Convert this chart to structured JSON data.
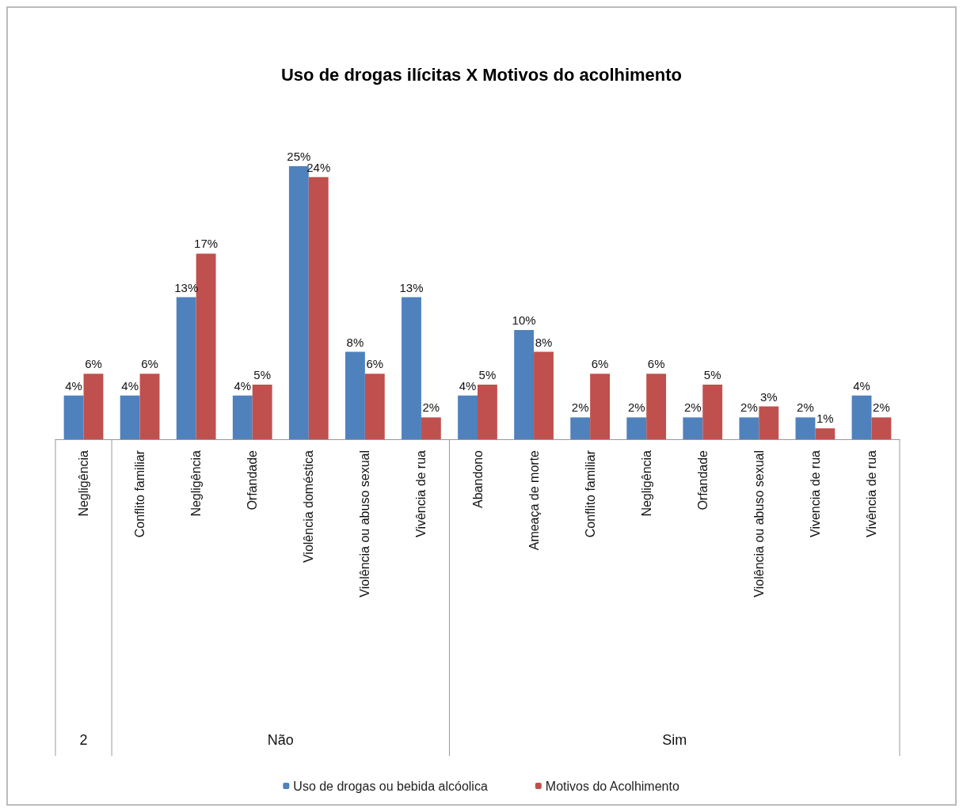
{
  "chart_data": {
    "type": "bar",
    "title": "Uso de drogas ilícitas X Motivos do acolhimento",
    "categories": [
      "Negligência",
      "Conflito familiar",
      "Negligência",
      "Orfandade",
      "Violência doméstica",
      "Violência ou abuso sexual",
      "Vivência de rua",
      "Abandono",
      "Ameaça de morte",
      "Conflito familiar",
      "Negligência",
      "Orfandade",
      "Violência ou abuso sexual",
      "Vivencia de rua",
      "Vivência de rua"
    ],
    "series": [
      {
        "name": "Uso de drogas ou bebida alcóolica",
        "color": "#4f81bd",
        "values": [
          4,
          4,
          13,
          4,
          25,
          8,
          13,
          4,
          10,
          2,
          2,
          2,
          2,
          2,
          4
        ],
        "value_labels": [
          "4%",
          "4%",
          "13%",
          "4%",
          "25%",
          "8%",
          "13%",
          "4%",
          "10%",
          "2%",
          "2%",
          "2%",
          "2%",
          "2%",
          "4%"
        ]
      },
      {
        "name": "Motivos do Acolhimento",
        "color": "#c0504d",
        "values": [
          6,
          6,
          17,
          5,
          24,
          6,
          2,
          5,
          8,
          6,
          6,
          5,
          3,
          1,
          2
        ],
        "value_labels": [
          "6%",
          "6%",
          "17%",
          "5%",
          "24%",
          "6%",
          "2%",
          "5%",
          "8%",
          "6%",
          "6%",
          "5%",
          "3%",
          "1%",
          "2%"
        ]
      }
    ],
    "annotations": [
      "2",
      "Não",
      "Sim"
    ],
    "legend": "bottom"
  }
}
